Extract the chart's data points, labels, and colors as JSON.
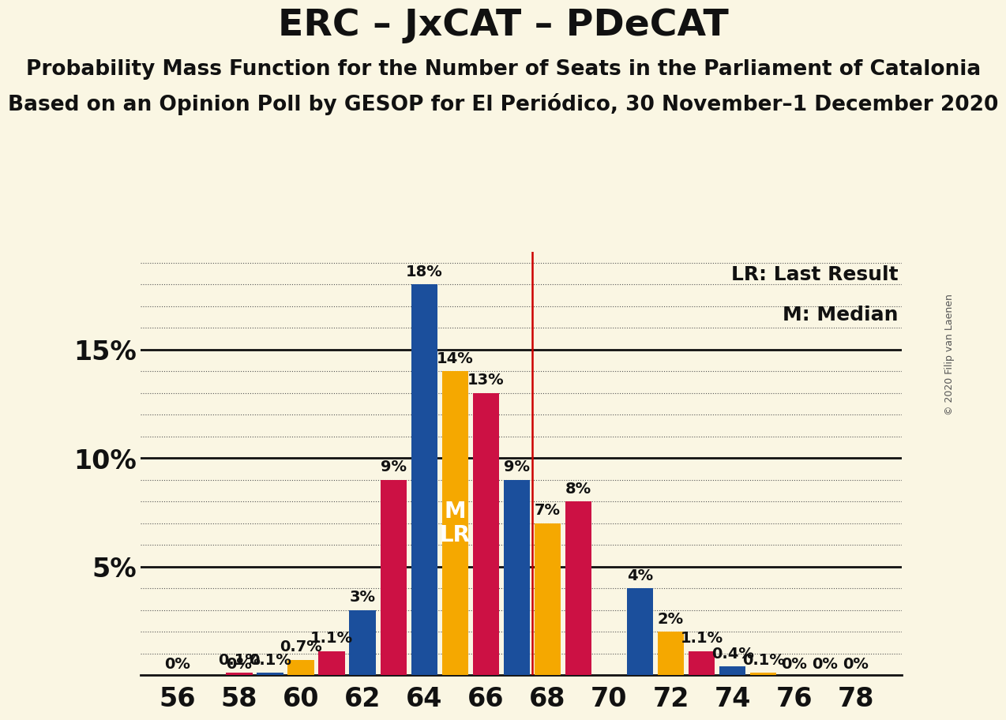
{
  "title": "ERC – JxCAT – PDeCAT",
  "subtitle1": "Probability Mass Function for the Number of Seats in the Parliament of Catalonia",
  "subtitle2": "Based on an Opinion Poll by GESOP for El Periódico, 30 November–1 December 2020",
  "copyright": "© 2020 Filip van Laenen",
  "legend_lr": "LR: Last Result",
  "legend_m": "M: Median",
  "background_color": "#FAF6E3",
  "bar_colors": {
    "blue": "#1B4F9C",
    "orange": "#F5A800",
    "red": "#CC1144"
  },
  "vline_color": "#CC0000",
  "vline_x": 67.5,
  "seats": [
    56,
    57,
    58,
    59,
    60,
    61,
    62,
    63,
    64,
    65,
    66,
    67,
    68,
    69,
    70,
    71,
    72,
    73,
    74,
    75,
    76,
    77,
    78
  ],
  "bar_party": [
    "blue",
    "blue",
    "red",
    "blue",
    "orange",
    "red",
    "blue",
    "red",
    "blue",
    "orange",
    "red",
    "blue",
    "orange",
    "red",
    "orange",
    "blue",
    "orange",
    "red",
    "blue",
    "orange",
    "blue",
    "blue",
    "blue"
  ],
  "bar_values": [
    0.0,
    0.0,
    0.1,
    0.1,
    0.7,
    1.1,
    3.0,
    9.0,
    18.0,
    14.0,
    13.0,
    9.0,
    7.0,
    8.0,
    0.0,
    4.0,
    2.0,
    1.1,
    0.4,
    0.1,
    0.0,
    0.0,
    0.0
  ],
  "annotations": [
    "0%",
    "",
    "0.1%",
    "0.1%",
    "0.7%",
    "1.1%",
    "3%",
    "9%",
    "18%",
    "14%",
    "13%",
    "9%",
    "7%",
    "8%",
    "",
    "4%",
    "2%",
    "1.1%",
    "0.4%",
    "0.1%",
    "0%",
    "0%",
    "0%"
  ],
  "ann_at_zero": [
    true,
    false,
    false,
    false,
    false,
    false,
    false,
    false,
    false,
    false,
    false,
    false,
    false,
    false,
    false,
    false,
    false,
    false,
    false,
    false,
    true,
    true,
    true
  ],
  "orange_extra_zero": {
    "seat": 70,
    "label": "0%"
  },
  "blue_extra": {
    "seat": 56,
    "label": "0%"
  },
  "ylim": [
    0,
    19.5
  ],
  "ytick_positions": [
    5,
    10,
    15
  ],
  "ytick_labels": [
    "5%",
    "10%",
    "15%"
  ],
  "xtick_seats": [
    56,
    58,
    60,
    62,
    64,
    66,
    68,
    70,
    72,
    74,
    76,
    78
  ],
  "bar_width": 0.85,
  "title_fontsize": 34,
  "subtitle_fontsize": 19,
  "axis_tick_fontsize": 24,
  "annotation_fontsize": 14,
  "ml_fontsize": 20,
  "legend_fontsize": 18,
  "copyright_fontsize": 9,
  "ml_text": "M\nLR",
  "ml_x": 65.0,
  "ml_y": 7.0,
  "dotted_grid_yticks": [
    1,
    2,
    3,
    4,
    5,
    6,
    7,
    8,
    9,
    10,
    11,
    12,
    13,
    14,
    15,
    16,
    17,
    18,
    19
  ]
}
